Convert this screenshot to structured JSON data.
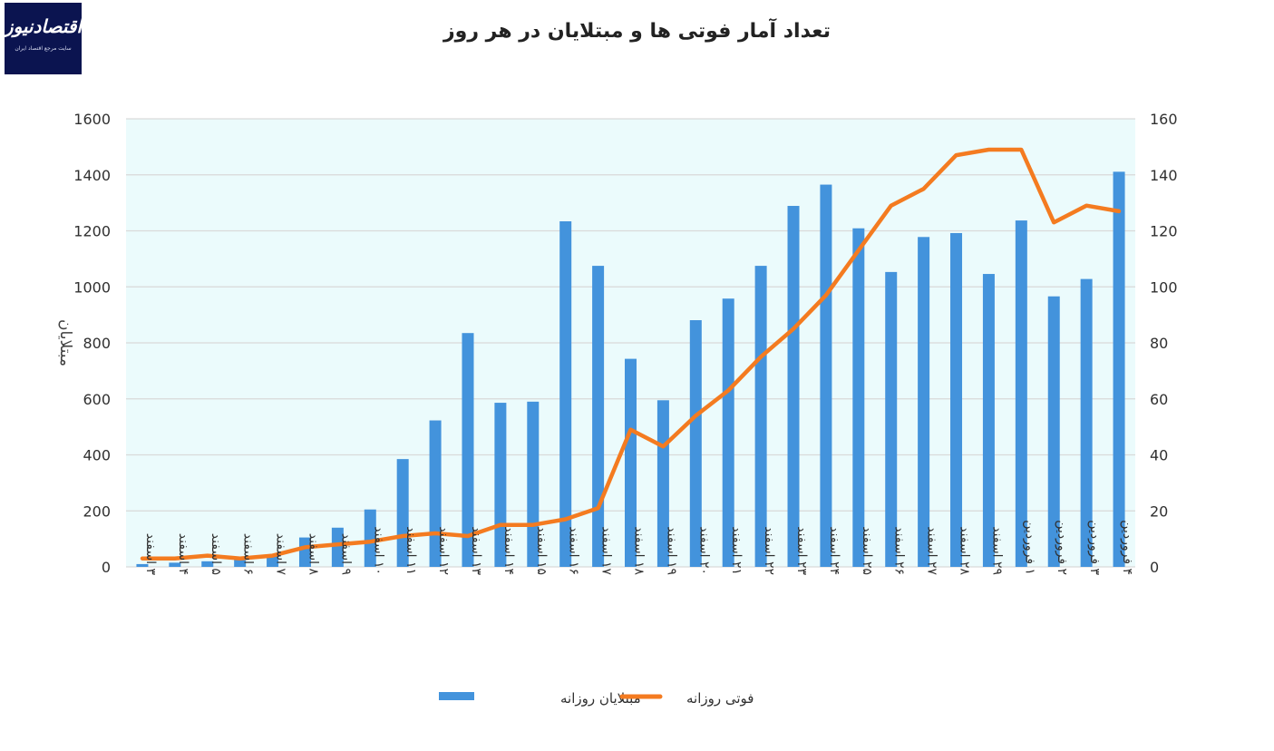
{
  "logo": {
    "brand": "اقتصادنیوز",
    "tagline": "سایت مرجع اقتصاد ایران"
  },
  "chart_data": {
    "type": "bar+line",
    "title": "تعداد آمار فوتی ها و مبتلایان در هر روز",
    "ylabel_left": "مبتلایان",
    "ylim_left": [
      0,
      1600
    ],
    "yticks_left": [
      0,
      200,
      400,
      600,
      800,
      1000,
      1200,
      1400,
      1600
    ],
    "ylim_right": [
      0,
      160
    ],
    "yticks_right": [
      0,
      20,
      40,
      60,
      80,
      100,
      120,
      140,
      160
    ],
    "categories": [
      "۳ اسفند",
      "۴ اسفند",
      "۵ اسفند",
      "۶ اسفند",
      "۷ اسفند",
      "۸ اسفند",
      "۹ اسفند",
      "۱۰ اسفند",
      "۱۱ اسفند",
      "۱۲ اسفند",
      "۱۳ اسفند",
      "۱۴ اسفند",
      "۱۵ اسفند",
      "۱۶ اسفند",
      "۱۷ اسفند",
      "۱۸ اسفند",
      "۱۹ اسفند",
      "۲۰ اسفند",
      "۲۱ اسفند",
      "۲۲ اسفند",
      "۲۳ اسفند",
      "۲۴ اسفند",
      "۲۵ اسفند",
      "۲۶ اسفند",
      "۲۷ اسفند",
      "۲۸ اسفند",
      "۲۹ اسفند",
      "۱ فروردین",
      "۲ فروردین",
      "۳ فروردین",
      "۴ فروردین"
    ],
    "series": [
      {
        "name": "مبتلایان روزانه",
        "type": "bar",
        "axis": "left",
        "color": "#4393dc",
        "values": [
          10,
          15,
          20,
          30,
          40,
          105,
          140,
          205,
          385,
          523,
          835,
          586,
          590,
          1234,
          1075,
          743,
          595,
          881,
          958,
          1075,
          1289,
          1365,
          1209,
          1053,
          1178,
          1192,
          1046,
          1237,
          966,
          1028,
          1411
        ]
      },
      {
        "name": "فوتی روزانه",
        "type": "line",
        "axis": "right",
        "color": "#f47b20",
        "values": [
          3,
          3,
          4,
          3,
          4,
          7,
          8,
          9,
          11,
          12,
          11,
          15,
          15,
          17,
          21,
          49,
          43,
          54,
          63,
          75,
          85,
          97,
          113,
          129,
          135,
          147,
          149,
          149,
          123,
          129,
          127
        ]
      }
    ],
    "plot_background": "#ebfbfc",
    "grid": true,
    "legend_position": "bottom"
  }
}
